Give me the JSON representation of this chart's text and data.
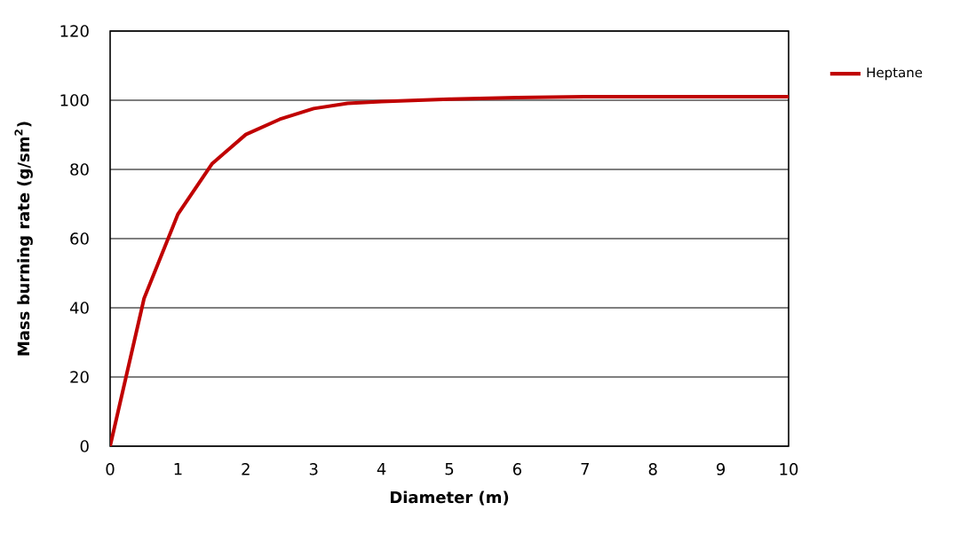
{
  "chart_data": {
    "type": "line",
    "xlabel": "Diameter (m)",
    "ylabel": "Mass burning rate (g/sm$^{2}$)",
    "x": [
      0,
      0.5,
      1,
      1.5,
      2,
      2.5,
      3,
      3.5,
      4,
      5,
      6,
      7,
      8,
      9,
      10
    ],
    "series": [
      {
        "name": "Heptane",
        "color": "#c00000",
        "values": [
          0,
          42.7,
          67.1,
          81.6,
          90.1,
          94.5,
          97.6,
          99.1,
          99.6,
          100.3,
          100.8,
          101,
          101,
          101,
          101
        ]
      }
    ],
    "xlim": [
      0,
      10
    ],
    "ylim": [
      0,
      120
    ],
    "xticks": [
      0,
      1,
      2,
      3,
      4,
      5,
      6,
      7,
      8,
      9,
      10
    ],
    "yticks": [
      0,
      20,
      40,
      60,
      80,
      100,
      120
    ],
    "grid": "y",
    "legend": "right",
    "marker": "none",
    "line_style": "solid"
  }
}
